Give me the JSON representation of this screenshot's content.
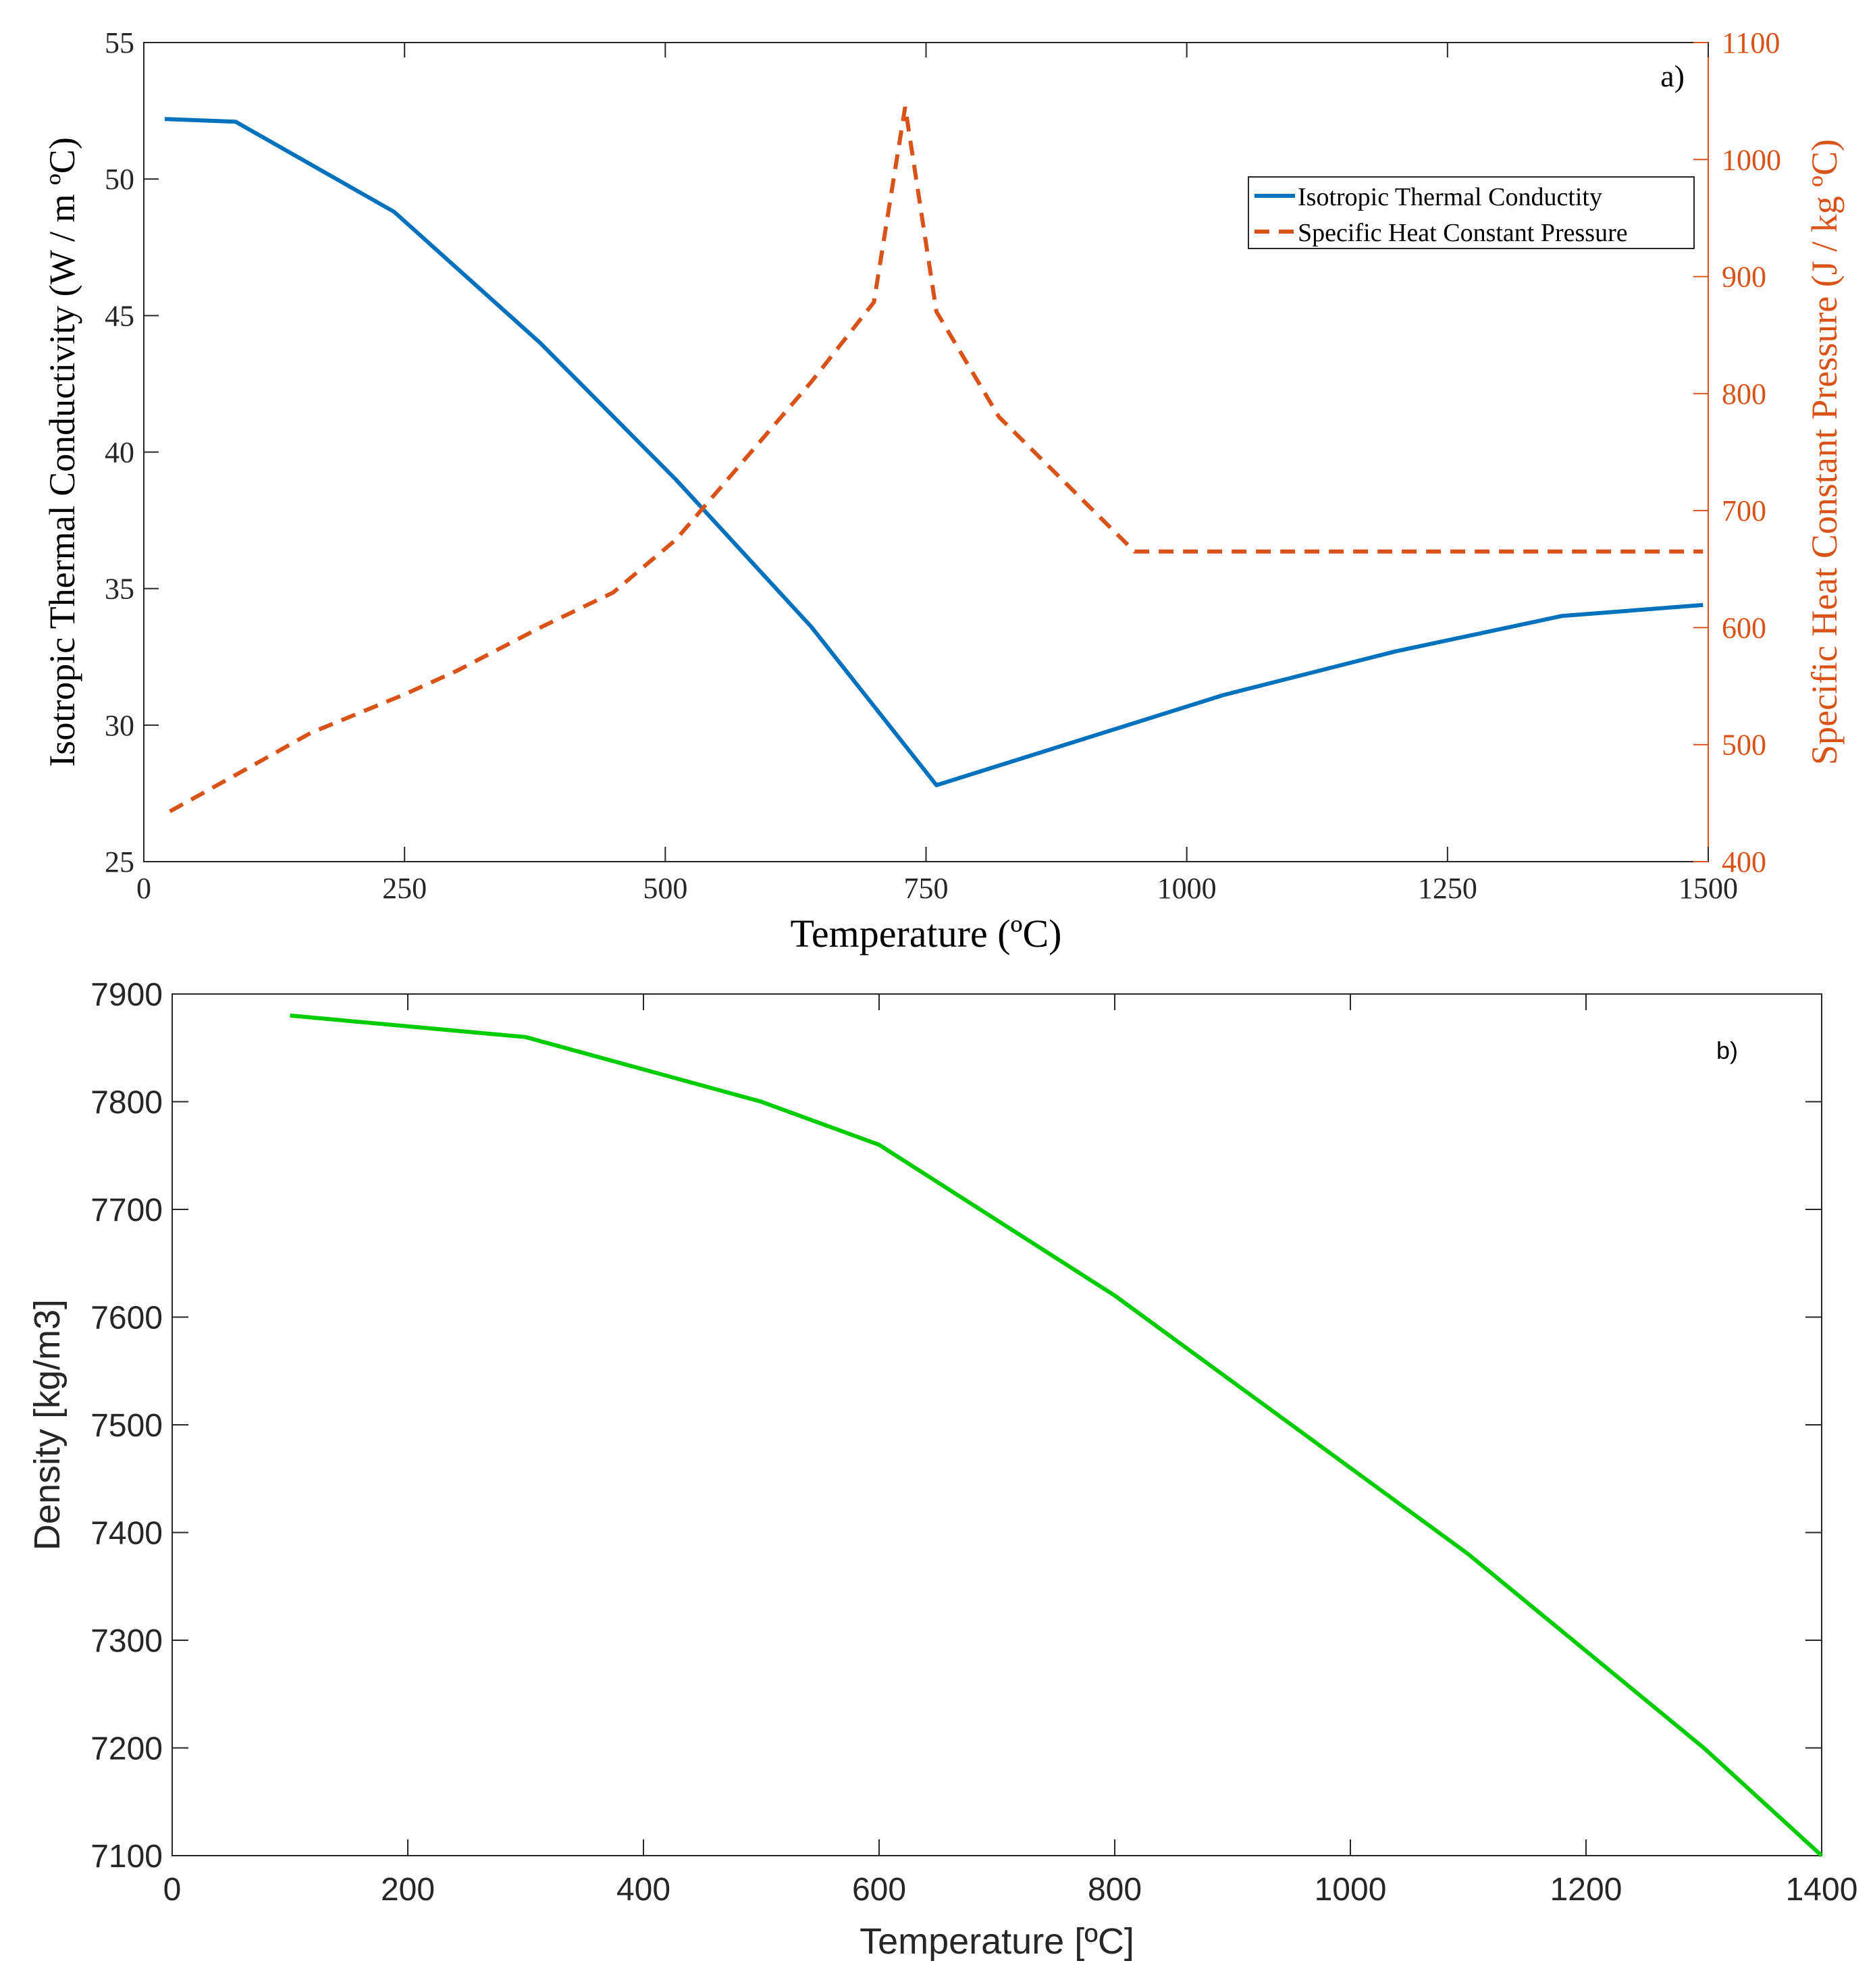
{
  "colors": {
    "axis": "#262626",
    "conductivity": "#0072BD",
    "specific_heat": "#D95319",
    "density": "#00CC00"
  },
  "chart_data": [
    {
      "type": "line",
      "panel_label": "a)",
      "xlabel": "Temperature (ºC)",
      "ylabel_left": "Isotropic Thermal Conductivity (W / m ºC)",
      "ylabel_right": "Specific Heat Constant Pressure (J / kg ºC)",
      "xlim": [
        0,
        1500
      ],
      "ylim_left": [
        25,
        55
      ],
      "ylim_right": [
        400,
        1100
      ],
      "x_ticks": [
        "0",
        "250",
        "500",
        "750",
        "1000",
        "1250",
        "1500"
      ],
      "y_ticks_left": [
        "25",
        "30",
        "35",
        "40",
        "45",
        "50",
        "55"
      ],
      "y_ticks_right": [
        "400",
        "500",
        "600",
        "700",
        "800",
        "900",
        "1000",
        "1100"
      ],
      "legend": [
        "Isotropic Thermal Conductity",
        "Specific Heat Constant Pressure"
      ],
      "legend_position": "top-right",
      "series": [
        {
          "name": "Isotropic Thermal Conductity",
          "axis": "left",
          "style": "solid",
          "x": [
            20,
            88,
            240,
            380,
            510,
            640,
            760,
            1035,
            1200,
            1360,
            1495
          ],
          "y": [
            52.2,
            52.1,
            48.8,
            44.0,
            39.0,
            33.6,
            27.8,
            31.1,
            32.7,
            34.0,
            34.4
          ]
        },
        {
          "name": "Specific Heat Constant Pressure",
          "axis": "right",
          "style": "dashed",
          "x": [
            25,
            90,
            160,
            250,
            300,
            380,
            450,
            510,
            640,
            700,
            730,
            760,
            820,
            950,
            1100,
            1250,
            1495
          ],
          "y": [
            443,
            475,
            510,
            543,
            563,
            600,
            630,
            675,
            810,
            878,
            1045,
            870,
            780,
            665,
            665,
            665,
            665
          ]
        }
      ]
    },
    {
      "type": "line",
      "panel_label": "b)",
      "xlabel": "Temperature [ºC]",
      "ylabel": "Density [kg/m3]",
      "xlim": [
        0,
        1400
      ],
      "ylim": [
        7100,
        7900
      ],
      "x_ticks": [
        "0",
        "200",
        "400",
        "600",
        "800",
        "1000",
        "1200",
        "1400"
      ],
      "y_ticks": [
        "7100",
        "7200",
        "7300",
        "7400",
        "7500",
        "7600",
        "7700",
        "7800",
        "7900"
      ],
      "series": [
        {
          "name": "Density",
          "x": [
            100,
            300,
            500,
            600,
            800,
            1100,
            1300,
            1400
          ],
          "y": [
            7880,
            7860,
            7800,
            7760,
            7620,
            7380,
            7200,
            7100
          ]
        }
      ]
    }
  ]
}
